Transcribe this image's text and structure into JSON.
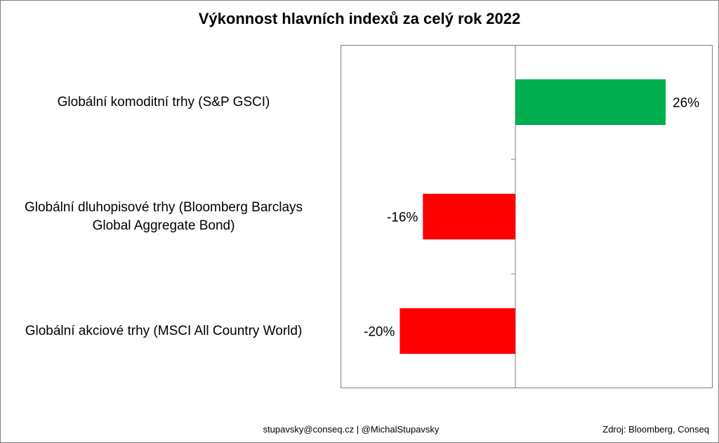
{
  "chart_data": {
    "type": "bar",
    "orientation": "horizontal",
    "title": "Výkonnost hlavních indexů za celý rok 2022",
    "categories": [
      "Globální komoditní trhy (S&P GSCI)",
      "Globální dluhopisové trhy (Bloomberg Barclays Global Aggregate Bond)",
      "Globální akciové trhy (MSCI All Country World)"
    ],
    "category_lines": [
      [
        "Globální komoditní trhy (S&P GSCI)"
      ],
      [
        "Globální dluhopisové trhy (Bloomberg Barclays",
        "Global Aggregate Bond)"
      ],
      [
        "Globální akciové trhy (MSCI All Country World)"
      ]
    ],
    "values": [
      26,
      -16,
      -20
    ],
    "data_labels": [
      "26%",
      "-16%",
      "-20%"
    ],
    "bar_colors": [
      "#00b050",
      "#ff0000",
      "#ff0000"
    ],
    "xlim": [
      -30,
      30
    ],
    "grid": false,
    "legend": "none"
  },
  "footer": {
    "contact": "stupavsky@conseq.cz  |  @MichalStupavsky",
    "source": "Zdroj: Bloomberg, Conseq"
  }
}
